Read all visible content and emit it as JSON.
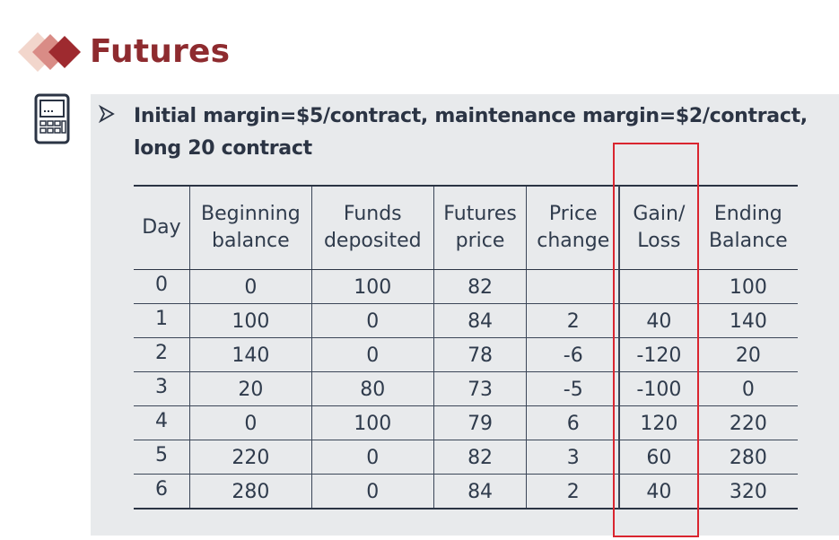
{
  "title": "Futures",
  "bullet": {
    "line1": "Initial margin=$5/contract, maintenance margin=$2/contract,",
    "line2": "long 20 contract"
  },
  "table": {
    "headers": [
      {
        "l1": "Day",
        "l2": ""
      },
      {
        "l1": "Beginning",
        "l2": "balance"
      },
      {
        "l1": "Funds",
        "l2": "deposited"
      },
      {
        "l1": "Futures",
        "l2": "price"
      },
      {
        "l1": "Price",
        "l2": "change"
      },
      {
        "l1": "Gain/",
        "l2": "Loss"
      },
      {
        "l1": "Ending",
        "l2": "Balance"
      }
    ],
    "rows": [
      [
        "0",
        "0",
        "100",
        "82",
        "",
        "",
        "100"
      ],
      [
        "1",
        "100",
        "0",
        "84",
        "2",
        "40",
        "140"
      ],
      [
        "2",
        "140",
        "0",
        "78",
        "-6",
        "-120",
        "20"
      ],
      [
        "3",
        "20",
        "80",
        "73",
        "-5",
        "-100",
        "0"
      ],
      [
        "4",
        "0",
        "100",
        "79",
        "6",
        "120",
        "220"
      ],
      [
        "5",
        "220",
        "0",
        "82",
        "3",
        "60",
        "280"
      ],
      [
        "6",
        "280",
        "0",
        "84",
        "2",
        "40",
        "320"
      ]
    ]
  },
  "colors": {
    "title": "#8e2b2f",
    "highlight": "#d9252f",
    "panel": "#e8eaec",
    "text": "#2f3b4c"
  },
  "icons": {
    "logo": "stacked-diamonds-logo",
    "calculator": "calculator-icon",
    "bullet": "arrowhead-bullet-icon"
  }
}
